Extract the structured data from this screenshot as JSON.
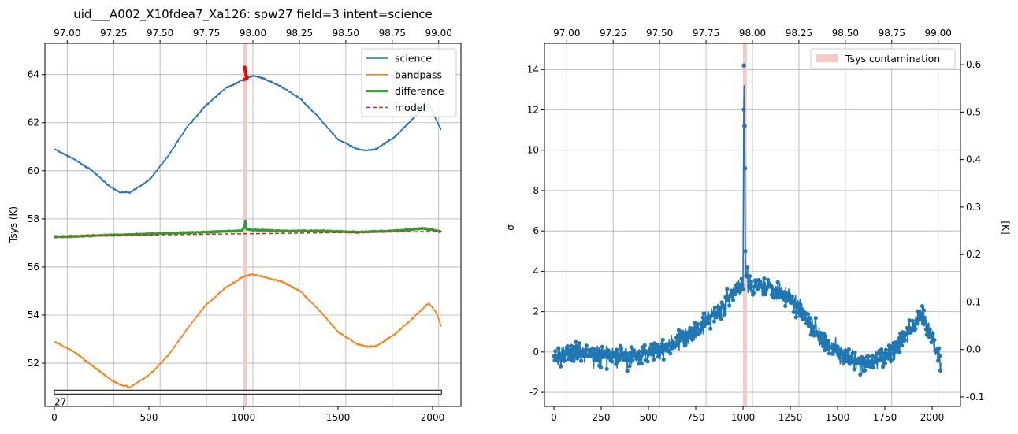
{
  "title": "uid___A002_X10fdea7_Xa126: spw27 field=3 intent=science",
  "colors": {
    "science": "#1f77b4",
    "bandpass": "#ff7f0e",
    "difference": "#2ca02c",
    "model": "#d62728",
    "contamination_band": "#f7c9c4",
    "contaminated_points": "#ff0000",
    "grid": "#b0b0b0"
  },
  "chart_data": [
    {
      "type": "line",
      "title": "uid___A002_X10fdea7_Xa126: spw27 field=3 intent=science",
      "ylabel": "Tsys (K)",
      "xlabel": "",
      "xlim": [
        -50,
        2150
      ],
      "ylim": [
        50.2,
        65.3
      ],
      "xticks": [
        0,
        500,
        1000,
        1500,
        2000
      ],
      "yticks": [
        52,
        54,
        56,
        58,
        60,
        62,
        64
      ],
      "top_axis": {
        "label": "",
        "lim": [
          96.88,
          99.12
        ],
        "ticks": [
          97.0,
          97.25,
          97.5,
          97.75,
          98.0,
          98.25,
          98.5,
          98.75,
          99.0
        ]
      },
      "grid": true,
      "legend": {
        "placement": "top-right",
        "entries": [
          "science",
          "bandpass",
          "difference",
          "model"
        ]
      },
      "contamination_span": [
        1000,
        1020
      ],
      "series": [
        {
          "name": "science",
          "style": "line",
          "x": [
            0,
            100,
            200,
            300,
            350,
            400,
            500,
            600,
            700,
            800,
            900,
            1000,
            1050,
            1100,
            1200,
            1300,
            1400,
            1500,
            1600,
            1650,
            1700,
            1800,
            1900,
            1980,
            2020,
            2047
          ],
          "y": [
            60.9,
            60.5,
            60.0,
            59.3,
            59.1,
            59.1,
            59.6,
            60.6,
            61.8,
            62.7,
            63.4,
            63.8,
            63.95,
            63.85,
            63.5,
            63.0,
            62.2,
            61.3,
            60.9,
            60.85,
            60.9,
            61.4,
            62.2,
            62.8,
            62.1,
            61.7
          ]
        },
        {
          "name": "bandpass",
          "style": "line",
          "x": [
            0,
            100,
            200,
            300,
            350,
            400,
            500,
            600,
            700,
            800,
            900,
            1000,
            1050,
            1100,
            1200,
            1300,
            1400,
            1500,
            1600,
            1650,
            1700,
            1800,
            1900,
            1980,
            2020,
            2047
          ],
          "y": [
            52.9,
            52.5,
            51.9,
            51.3,
            51.1,
            51.0,
            51.5,
            52.3,
            53.4,
            54.4,
            55.1,
            55.6,
            55.7,
            55.6,
            55.4,
            55.0,
            54.2,
            53.3,
            52.8,
            52.7,
            52.7,
            53.2,
            53.9,
            54.5,
            54.1,
            53.5
          ]
        },
        {
          "name": "difference",
          "style": "thick-line",
          "x": [
            0,
            200,
            400,
            600,
            800,
            990,
            1005,
            1010,
            1015,
            1030,
            1200,
            1400,
            1600,
            1800,
            1950,
            2000,
            2047
          ],
          "y": [
            57.25,
            57.3,
            57.35,
            57.4,
            57.45,
            57.5,
            57.65,
            57.9,
            57.6,
            57.55,
            57.5,
            57.5,
            57.45,
            57.5,
            57.6,
            57.55,
            57.45
          ]
        },
        {
          "name": "model",
          "style": "dashed",
          "x": [
            0,
            500,
            1000,
            1500,
            2047
          ],
          "y": [
            57.28,
            57.33,
            57.38,
            57.43,
            57.48
          ]
        },
        {
          "style": "markers",
          "x": [
            1005,
            1007,
            1009,
            1011,
            1013,
            1015,
            1017,
            1019
          ],
          "y": [
            63.8,
            64.3,
            64.2,
            64.1,
            64.0,
            63.95,
            63.9,
            63.85
          ]
        }
      ],
      "annotations": [
        {
          "type": "spw-bar",
          "x": [
            0,
            2047
          ],
          "y": 50.78,
          "label": "27"
        }
      ]
    },
    {
      "type": "line",
      "title": "",
      "ylabel": "σ",
      "xlabel": "",
      "xlim": [
        -50,
        2150
      ],
      "ylim": [
        -2.7,
        15.3
      ],
      "xticks": [
        0,
        250,
        500,
        750,
        1000,
        1250,
        1500,
        1750,
        2000
      ],
      "yticks": [
        -2,
        0,
        2,
        4,
        6,
        8,
        10,
        12,
        14
      ],
      "top_axis": {
        "label": "",
        "lim": [
          96.88,
          99.12
        ],
        "ticks": [
          97.0,
          97.25,
          97.5,
          97.75,
          98.0,
          98.25,
          98.5,
          98.75,
          99.0
        ]
      },
      "right_axis": {
        "label": "[K]",
        "lim": [
          -0.12,
          0.645
        ],
        "ticks": [
          -0.1,
          0.0,
          0.1,
          0.2,
          0.3,
          0.4,
          0.5,
          0.6
        ]
      },
      "grid": true,
      "legend": {
        "placement": "top-right",
        "entries": [
          "Tsys contamination"
        ]
      },
      "contamination_span": [
        1000,
        1020
      ],
      "series": [
        {
          "name": "σ",
          "style": "line-markers",
          "x": [
            0,
            100,
            200,
            300,
            400,
            500,
            600,
            700,
            800,
            900,
            950,
            1000,
            1005,
            1008,
            1010,
            1012,
            1015,
            1030,
            1100,
            1200,
            1300,
            1400,
            1500,
            1600,
            1700,
            1800,
            1900,
            1950,
            2000,
            2047
          ],
          "y": [
            -0.3,
            0.0,
            -0.1,
            -0.2,
            -0.3,
            0.0,
            0.3,
            0.7,
            1.5,
            2.3,
            2.9,
            3.3,
            14.2,
            11.2,
            9.1,
            5.0,
            3.8,
            3.4,
            3.3,
            3.0,
            2.2,
            0.9,
            0.0,
            -0.6,
            -0.5,
            0.1,
            1.3,
            1.9,
            0.7,
            -0.6
          ]
        }
      ]
    }
  ]
}
